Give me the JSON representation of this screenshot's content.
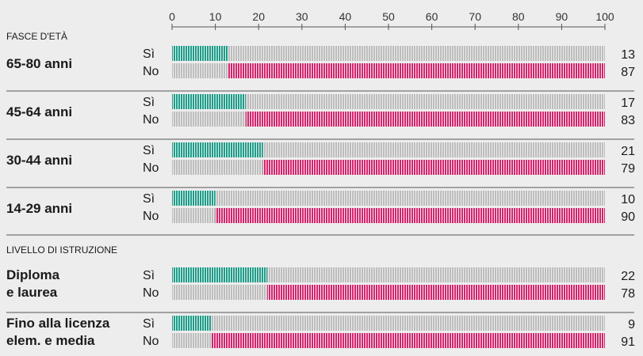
{
  "chart_data": {
    "type": "bar",
    "orientation": "horizontal",
    "stacked": true,
    "xlim": [
      0,
      100
    ],
    "x_ticks": [
      "0",
      "10",
      "20",
      "30",
      "40",
      "50",
      "60",
      "70",
      "80",
      "90",
      "100"
    ],
    "row_labels": [
      "Sì",
      "No"
    ],
    "colors": {
      "si": "#1a9e8a",
      "no": "#d6236e",
      "track": "#bdbdbd",
      "background": "#ededed"
    },
    "sections": [
      {
        "title": "FASCE D'ETÀ",
        "groups": [
          {
            "label": [
              "65-80 anni"
            ],
            "si": 13,
            "no": 87
          },
          {
            "label": [
              "45-64 anni"
            ],
            "si": 17,
            "no": 83
          },
          {
            "label": [
              "30-44 anni"
            ],
            "si": 21,
            "no": 79
          },
          {
            "label": [
              "14-29 anni"
            ],
            "si": 10,
            "no": 90
          }
        ]
      },
      {
        "title": "LIVELLO DI ISTRUZIONE",
        "groups": [
          {
            "label": [
              "Diploma",
              "e laurea"
            ],
            "si": 22,
            "no": 78
          },
          {
            "label": [
              "Fino alla licenza",
              "elem. e media"
            ],
            "si": 9,
            "no": 91
          }
        ]
      }
    ]
  }
}
